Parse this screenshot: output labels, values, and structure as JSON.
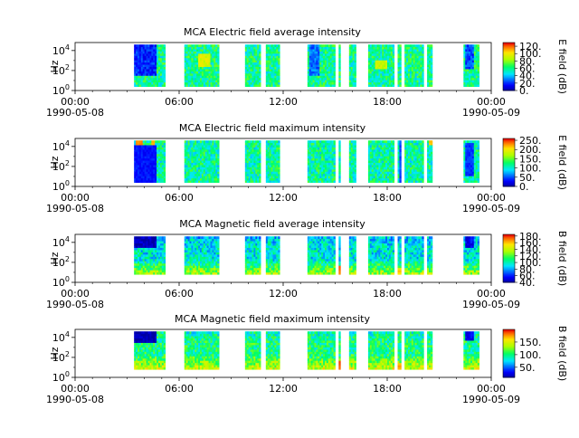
{
  "page": {
    "background": "#ffffff"
  },
  "chart_data": [
    {
      "type": "heatmap",
      "title": "MCA  Electric field average intensity",
      "ylabel": "Hz",
      "xtick_labels": [
        "00:00\n1990-05-08",
        "06:00",
        "12:00",
        "18:00",
        "00:00\n1990-05-09"
      ],
      "ytick_labels": [
        "10^0",
        "10^2",
        "10^4"
      ],
      "ylim_log10": [
        0,
        4.8
      ],
      "xlim_hours": [
        0,
        24
      ],
      "colorbar": {
        "label": "E field (dB)",
        "ticks": [
          0,
          20,
          40,
          60,
          80,
          100,
          120
        ],
        "tick_labels": [
          "0.",
          "20.",
          "40.",
          "60.",
          "80.",
          "100.",
          "120."
        ],
        "range": [
          0,
          130
        ]
      },
      "data_range_log10": [
        0.4,
        4.6
      ],
      "base_value": 60,
      "segments": [
        [
          3.4,
          5.2
        ],
        [
          6.3,
          8.3
        ],
        [
          9.8,
          10.7
        ],
        [
          11.0,
          11.8
        ],
        [
          13.4,
          15.0
        ],
        [
          15.2,
          15.3
        ],
        [
          15.8,
          16.2
        ],
        [
          16.9,
          18.4
        ],
        [
          18.6,
          18.8
        ],
        [
          19.0,
          20.1
        ],
        [
          20.3,
          20.6
        ],
        [
          22.4,
          23.3
        ]
      ],
      "cold_zones": [
        [
          3.4,
          4.6,
          20,
          1.5,
          4.6
        ],
        [
          13.5,
          14.0,
          30,
          1.5,
          4.4
        ],
        [
          22.5,
          23.0,
          25,
          2.0,
          4.6
        ]
      ],
      "hot_zones": [
        [
          7.0,
          7.7,
          95,
          2.2,
          3.5
        ],
        [
          17.3,
          18.0,
          90,
          2.0,
          3.0
        ]
      ]
    },
    {
      "type": "heatmap",
      "title": "MCA  Electric field maximum intensity",
      "ylabel": "Hz",
      "xtick_labels": [
        "00:00\n1990-05-08",
        "06:00",
        "12:00",
        "18:00",
        "00:00\n1990-05-09"
      ],
      "ytick_labels": [
        "10^0",
        "10^2",
        "10^4"
      ],
      "ylim_log10": [
        0,
        4.8
      ],
      "xlim_hours": [
        0,
        24
      ],
      "colorbar": {
        "label": "E field (dB)",
        "ticks": [
          0,
          50,
          100,
          150,
          200,
          250
        ],
        "tick_labels": [
          "0.",
          "50.",
          "100.",
          "150.",
          "200.",
          "250."
        ],
        "range": [
          0,
          260
        ]
      },
      "data_range_log10": [
        0.4,
        4.6
      ],
      "base_value": 115,
      "segments": [
        [
          3.4,
          5.2
        ],
        [
          6.3,
          8.3
        ],
        [
          9.8,
          10.7
        ],
        [
          11.0,
          11.8
        ],
        [
          13.4,
          15.0
        ],
        [
          15.2,
          15.3
        ],
        [
          15.8,
          16.2
        ],
        [
          16.9,
          18.4
        ],
        [
          18.6,
          18.8
        ],
        [
          19.0,
          20.1
        ],
        [
          20.3,
          20.6
        ],
        [
          22.4,
          23.3
        ]
      ],
      "cold_zones": [
        [
          3.4,
          4.6,
          35,
          0.4,
          4.0
        ],
        [
          22.5,
          23.0,
          45,
          1.0,
          4.2
        ],
        [
          18.7,
          18.8,
          50,
          0.4,
          4.6
        ]
      ],
      "hot_zones": [
        [
          3.5,
          3.9,
          230,
          4.1,
          4.6
        ],
        [
          4.3,
          4.5,
          220,
          4.1,
          4.5
        ],
        [
          20.4,
          20.6,
          215,
          4.1,
          4.6
        ]
      ]
    },
    {
      "type": "heatmap",
      "title": "MCA  Magnetic field average intensity",
      "ylabel": "Hz",
      "xtick_labels": [
        "00:00\n1990-05-08",
        "06:00",
        "12:00",
        "18:00",
        "00:00\n1990-05-09"
      ],
      "ytick_labels": [
        "10^0",
        "10^2",
        "10^4"
      ],
      "ylim_log10": [
        0,
        4.8
      ],
      "xlim_hours": [
        0,
        24
      ],
      "colorbar": {
        "label": "B field (dB)",
        "ticks": [
          40,
          60,
          80,
          100,
          120,
          140,
          160,
          180
        ],
        "tick_labels": [
          "40.",
          "60.",
          "80.",
          "100.",
          "120.",
          "140.",
          "160.",
          "180."
        ],
        "range": [
          40,
          185
        ]
      },
      "data_range_log10": [
        0.8,
        4.6
      ],
      "base_value": 95,
      "low_freq_boost": 40,
      "segments": [
        [
          3.4,
          5.2
        ],
        [
          6.3,
          8.3
        ],
        [
          9.8,
          10.7
        ],
        [
          11.0,
          11.8
        ],
        [
          13.4,
          15.0
        ],
        [
          15.2,
          15.3
        ],
        [
          15.8,
          16.2
        ],
        [
          16.9,
          18.4
        ],
        [
          18.6,
          18.8
        ],
        [
          19.0,
          20.1
        ],
        [
          20.3,
          20.6
        ],
        [
          22.4,
          23.3
        ]
      ],
      "cold_zones": [
        [
          3.4,
          4.6,
          45,
          3.4,
          4.6
        ],
        [
          22.5,
          23.0,
          55,
          3.4,
          4.6
        ]
      ],
      "hot_zones": [
        [
          15.2,
          15.3,
          170,
          0.8,
          1.6
        ],
        [
          18.6,
          18.8,
          160,
          0.8,
          1.4
        ]
      ]
    },
    {
      "type": "heatmap",
      "title": "MCA  Magnetic field maximum intensity",
      "ylabel": "Hz",
      "xtick_labels": [
        "00:00\n1990-05-08",
        "06:00",
        "12:00",
        "18:00",
        "00:00\n1990-05-09"
      ],
      "ytick_labels": [
        "10^0",
        "10^2",
        "10^4"
      ],
      "ylim_log10": [
        0,
        4.8
      ],
      "xlim_hours": [
        0,
        24
      ],
      "colorbar": {
        "label": "B field (dB)",
        "ticks": [
          50,
          100,
          150
        ],
        "tick_labels": [
          "50.",
          "100.",
          "150."
        ],
        "range": [
          10,
          200
        ]
      },
      "data_range_log10": [
        0.8,
        4.6
      ],
      "base_value": 100,
      "low_freq_boost": 45,
      "segments": [
        [
          3.4,
          5.2
        ],
        [
          6.3,
          8.3
        ],
        [
          9.8,
          10.7
        ],
        [
          11.0,
          11.8
        ],
        [
          13.4,
          15.0
        ],
        [
          15.2,
          15.3
        ],
        [
          15.8,
          16.2
        ],
        [
          16.9,
          18.4
        ],
        [
          18.6,
          18.8
        ],
        [
          19.0,
          20.1
        ],
        [
          20.3,
          20.6
        ],
        [
          22.4,
          23.3
        ]
      ],
      "cold_zones": [
        [
          3.4,
          4.6,
          15,
          3.4,
          4.6
        ],
        [
          22.5,
          23.0,
          30,
          3.6,
          4.6
        ]
      ],
      "hot_zones": [
        [
          15.2,
          15.3,
          185,
          0.8,
          1.6
        ],
        [
          18.6,
          18.8,
          175,
          0.8,
          1.3
        ]
      ]
    }
  ]
}
